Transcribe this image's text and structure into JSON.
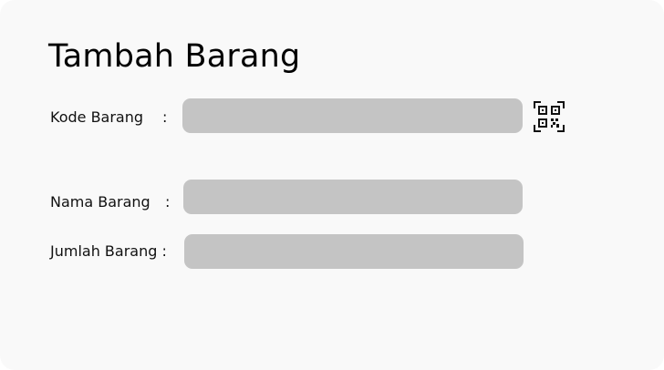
{
  "page": {
    "title": "Tambah Barang"
  },
  "form": {
    "kode": {
      "label": "Kode Barang",
      "colon": ":",
      "value": "",
      "placeholder": ""
    },
    "nama": {
      "label": "Nama Barang",
      "colon": ":",
      "value": "",
      "placeholder": ""
    },
    "jumlah": {
      "label": "Jumlah Barang :",
      "value": "",
      "placeholder": ""
    }
  },
  "icons": {
    "scan": "qr-code-icon"
  },
  "colors": {
    "card_background": "#f9f9f9",
    "input_background": "#c4c4c4",
    "text": "#000000"
  }
}
